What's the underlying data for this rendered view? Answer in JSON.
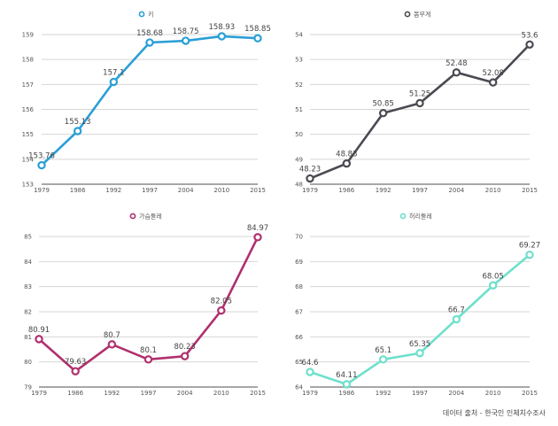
{
  "footer": "데이터 출처 - 한국인 인체치수조사",
  "chart_data": [
    {
      "type": "line",
      "title": "",
      "legend": "키",
      "legend_position": "top-center",
      "color": "#2a9fd6",
      "x": [
        "1979",
        "1986",
        "1992",
        "1997",
        "2004",
        "2010",
        "2015"
      ],
      "values": [
        153.76,
        155.13,
        157.1,
        158.68,
        158.75,
        158.93,
        158.85
      ],
      "labels": [
        "153.76",
        "155.13",
        "157.1",
        "158.68",
        "158.75",
        "158.93",
        "158.85"
      ],
      "ylim": [
        153,
        159
      ],
      "yticks": [
        153,
        154,
        155,
        156,
        157,
        158,
        159
      ],
      "grid": true,
      "xlabel": "",
      "ylabel": ""
    },
    {
      "type": "line",
      "title": "",
      "legend": "몸무게",
      "legend_position": "top-center",
      "color": "#4a4a52",
      "x": [
        "1979",
        "1986",
        "1992",
        "1997",
        "2004",
        "2010",
        "2015"
      ],
      "values": [
        48.23,
        48.83,
        50.85,
        51.25,
        52.48,
        52.08,
        53.6
      ],
      "labels": [
        "48.23",
        "48.83",
        "50.85",
        "51.25",
        "52.48",
        "52.08",
        "53.6"
      ],
      "ylim": [
        48,
        54
      ],
      "yticks": [
        48,
        49,
        50,
        51,
        52,
        53,
        54
      ],
      "grid": true,
      "xlabel": "",
      "ylabel": ""
    },
    {
      "type": "line",
      "title": "",
      "legend": "가슴둘레",
      "legend_position": "top-center",
      "color": "#b0306e",
      "x": [
        "1979",
        "1986",
        "1992",
        "1997",
        "2004",
        "2010",
        "2015"
      ],
      "values": [
        80.91,
        79.63,
        80.7,
        80.1,
        80.23,
        82.05,
        84.97
      ],
      "labels": [
        "80.91",
        "79.63",
        "80.7",
        "80.1",
        "80.23",
        "82.05",
        "84.97"
      ],
      "ylim": [
        79,
        85
      ],
      "yticks": [
        79,
        80,
        81,
        82,
        83,
        84,
        85
      ],
      "grid": true,
      "xlabel": "",
      "ylabel": ""
    },
    {
      "type": "line",
      "title": "",
      "legend": "허리둘레",
      "legend_position": "top-center",
      "color": "#6fe0cc",
      "x": [
        "1979",
        "1986",
        "1992",
        "1997",
        "2004",
        "2010",
        "2015"
      ],
      "values": [
        64.6,
        64.11,
        65.1,
        65.35,
        66.7,
        68.05,
        69.27
      ],
      "labels": [
        "64.6",
        "64.11",
        "65.1",
        "65.35",
        "66.7",
        "68.05",
        "69.27"
      ],
      "ylim": [
        64,
        70
      ],
      "yticks": [
        64,
        65,
        66,
        67,
        68,
        69,
        70
      ],
      "grid": true,
      "xlabel": "",
      "ylabel": ""
    }
  ]
}
